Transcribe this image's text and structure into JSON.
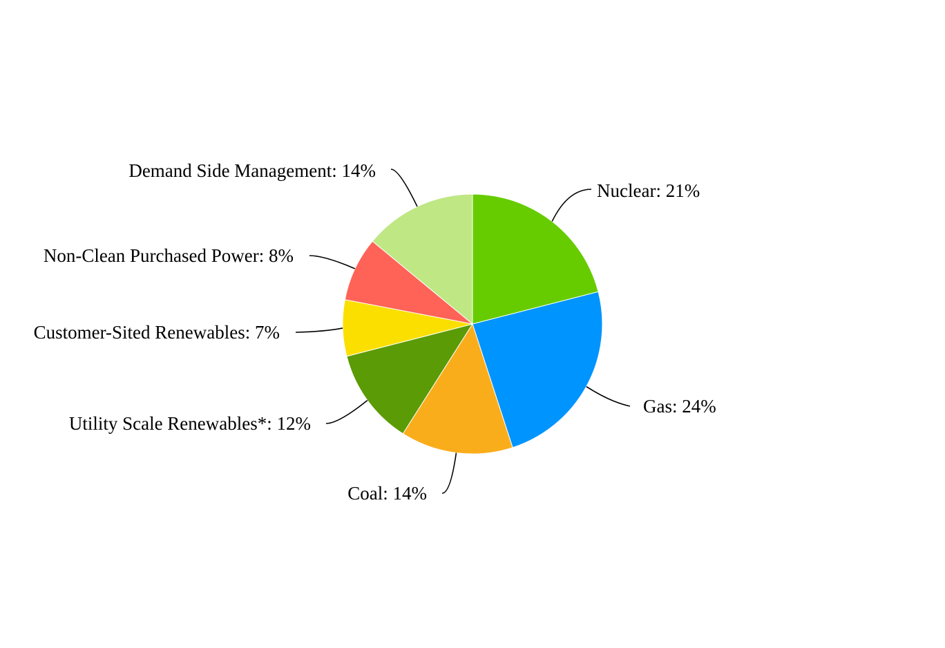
{
  "chart_data": {
    "type": "pie",
    "title": "",
    "slices": [
      {
        "name": "Nuclear",
        "value": 21,
        "label": "Nuclear: 21%",
        "color": "#66cc00"
      },
      {
        "name": "Gas",
        "value": 24,
        "label": "Gas: 24%",
        "color": "#0094ff"
      },
      {
        "name": "Coal",
        "value": 14,
        "label": "Coal: 14%",
        "color": "#faad1b"
      },
      {
        "name": "Utility Scale Renewables*",
        "value": 12,
        "label": "Utility Scale Renewables*: 12%",
        "color": "#5b9b05"
      },
      {
        "name": "Customer-Sited Renewables",
        "value": 7,
        "label": "Customer-Sited Renewables: 7%",
        "color": "#fadf00"
      },
      {
        "name": "Non-Clean Purchased Power",
        "value": 8,
        "label": "Non-Clean Purchased Power: 8%",
        "color": "#ff6357"
      },
      {
        "name": "Demand Side Management",
        "value": 14,
        "label": "Demand Side Management: 14%",
        "color": "#bfe784"
      }
    ]
  }
}
